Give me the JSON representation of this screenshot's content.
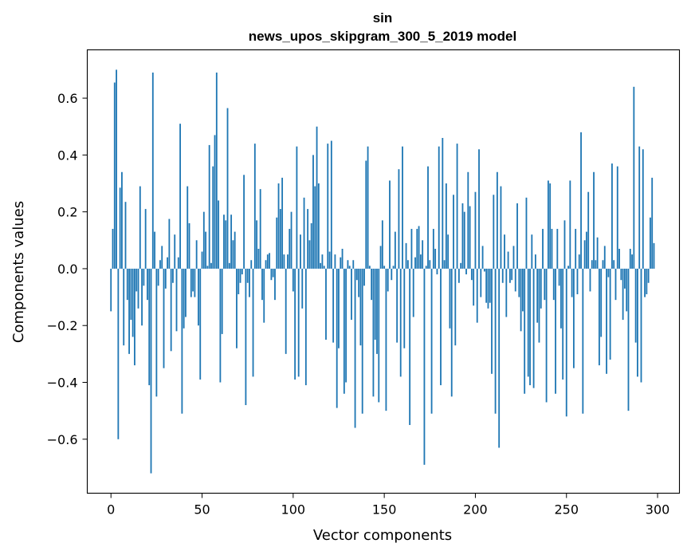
{
  "chart_data": {
    "type": "bar",
    "title": "sin",
    "subtitle": "news_upos_skipgram_300_5_2019 model",
    "xlabel": "Vector components",
    "ylabel": "Components values",
    "xlim": [
      -13,
      312
    ],
    "ylim": [
      -0.79,
      0.77
    ],
    "xticks": [
      0,
      50,
      100,
      150,
      200,
      250,
      300
    ],
    "yticks": [
      -0.6,
      -0.4,
      -0.2,
      0.0,
      0.2,
      0.4,
      0.6
    ],
    "ytick_labels": [
      "−0.6",
      "−0.4",
      "−0.2",
      "0.0",
      "0.2",
      "0.4",
      "0.6"
    ],
    "xtick_labels": [
      "0",
      "50",
      "100",
      "150",
      "200",
      "250",
      "300"
    ],
    "color": "#1f77b4",
    "bar_width": 0.8,
    "x_start": 0,
    "values": [
      -0.15,
      0.14,
      0.655,
      0.7,
      -0.6,
      0.285,
      0.34,
      -0.27,
      0.235,
      -0.11,
      -0.3,
      -0.18,
      -0.24,
      -0.34,
      -0.08,
      -0.14,
      0.29,
      -0.2,
      -0.06,
      0.21,
      -0.11,
      -0.41,
      -0.72,
      0.69,
      0.13,
      -0.45,
      -0.06,
      0.03,
      0.08,
      -0.35,
      -0.07,
      0.04,
      0.175,
      -0.29,
      -0.05,
      0.12,
      -0.22,
      0.04,
      0.51,
      -0.51,
      -0.21,
      -0.17,
      0.29,
      0.16,
      -0.1,
      -0.08,
      -0.1,
      0.1,
      -0.2,
      -0.39,
      0.06,
      0.2,
      0.13,
      0.01,
      0.435,
      0.02,
      0.36,
      0.47,
      0.69,
      0.24,
      -0.4,
      -0.23,
      0.19,
      0.17,
      0.565,
      0.02,
      0.19,
      0.1,
      0.13,
      -0.28,
      -0.09,
      -0.05,
      -0.02,
      0.33,
      -0.48,
      -0.05,
      -0.1,
      0.03,
      -0.38,
      0.44,
      0.17,
      0.07,
      0.28,
      -0.11,
      -0.19,
      0.03,
      0.05,
      0.055,
      -0.04,
      -0.03,
      -0.11,
      0.18,
      0.3,
      0.21,
      0.32,
      0.05,
      -0.3,
      0.05,
      0.14,
      0.2,
      -0.08,
      -0.39,
      0.43,
      -0.38,
      0.12,
      -0.14,
      0.25,
      -0.41,
      0.21,
      0.1,
      0.16,
      0.4,
      0.29,
      0.5,
      0.3,
      0.02,
      0.05,
      0.01,
      -0.25,
      0.44,
      0.06,
      0.45,
      -0.26,
      0.05,
      -0.49,
      -0.28,
      0.04,
      0.07,
      -0.44,
      -0.4,
      0.03,
      0.01,
      -0.18,
      0.03,
      -0.56,
      -0.04,
      -0.1,
      -0.27,
      -0.51,
      -0.06,
      0.38,
      0.43,
      0.01,
      -0.11,
      -0.45,
      -0.25,
      -0.3,
      -0.47,
      0.08,
      0.17,
      0.01,
      -0.5,
      -0.08,
      0.31,
      -0.04,
      0.01,
      0.13,
      -0.26,
      0.35,
      -0.38,
      0.43,
      -0.28,
      0.09,
      0.03,
      -0.55,
      0.14,
      -0.17,
      0.04,
      0.14,
      0.15,
      0.05,
      0.1,
      -0.69,
      0.01,
      0.36,
      0.03,
      -0.51,
      0.14,
      0.07,
      -0.02,
      0.43,
      -0.41,
      0.46,
      0.03,
      0.3,
      0.12,
      -0.21,
      -0.45,
      0.26,
      -0.27,
      0.44,
      -0.05,
      0.02,
      0.23,
      0.2,
      -0.02,
      0.34,
      0.22,
      -0.04,
      -0.13,
      0.27,
      -0.19,
      0.42,
      -0.1,
      0.08,
      -0.01,
      -0.12,
      -0.14,
      -0.12,
      -0.37,
      0.26,
      -0.51,
      0.34,
      -0.63,
      0.29,
      -0.05,
      0.12,
      -0.17,
      0.06,
      -0.05,
      -0.04,
      0.08,
      -0.08,
      0.23,
      -0.1,
      -0.22,
      -0.15,
      -0.44,
      0.25,
      -0.38,
      -0.41,
      0.12,
      -0.42,
      0.05,
      -0.19,
      -0.26,
      -0.14,
      0.14,
      -0.11,
      -0.47,
      0.31,
      0.3,
      0.14,
      -0.11,
      -0.44,
      0.14,
      -0.06,
      -0.21,
      -0.39,
      0.17,
      -0.52,
      0.01,
      0.31,
      -0.1,
      -0.35,
      0.14,
      -0.09,
      0.05,
      0.48,
      -0.51,
      0.1,
      0.13,
      0.27,
      -0.08,
      0.03,
      0.34,
      0.03,
      0.11,
      -0.34,
      -0.24,
      0.03,
      0.08,
      -0.37,
      -0.03,
      -0.32,
      0.37,
      0.03,
      -0.11,
      0.36,
      0.07,
      -0.04,
      -0.18,
      -0.07,
      -0.15,
      -0.5,
      0.07,
      0.05,
      0.64,
      -0.26,
      -0.38,
      0.43,
      -0.4,
      0.42,
      -0.1,
      -0.09,
      -0.05,
      0.18,
      0.32,
      0.09
    ]
  }
}
